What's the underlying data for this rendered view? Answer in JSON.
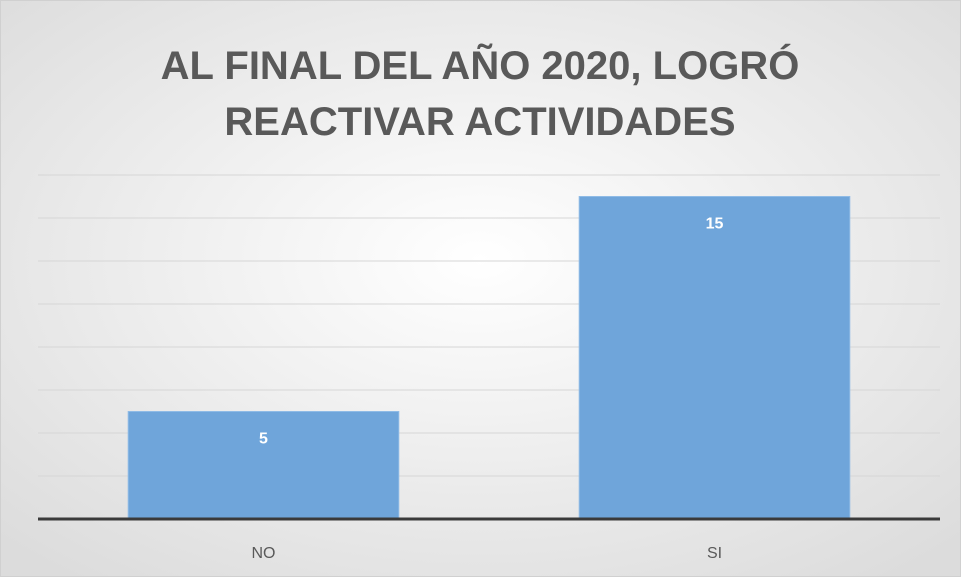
{
  "chart_data": {
    "type": "bar",
    "title": "AL FINAL DEL AÑO 2020, LOGRÓ REACTIVAR ACTIVIDADES",
    "categories": [
      "NO",
      "SI"
    ],
    "values": [
      5,
      15
    ],
    "color": "#6fa5da",
    "ylim": [
      0,
      16
    ],
    "yticks": [
      0,
      2,
      4,
      6,
      8,
      10,
      12,
      14,
      16
    ],
    "grid": true
  }
}
